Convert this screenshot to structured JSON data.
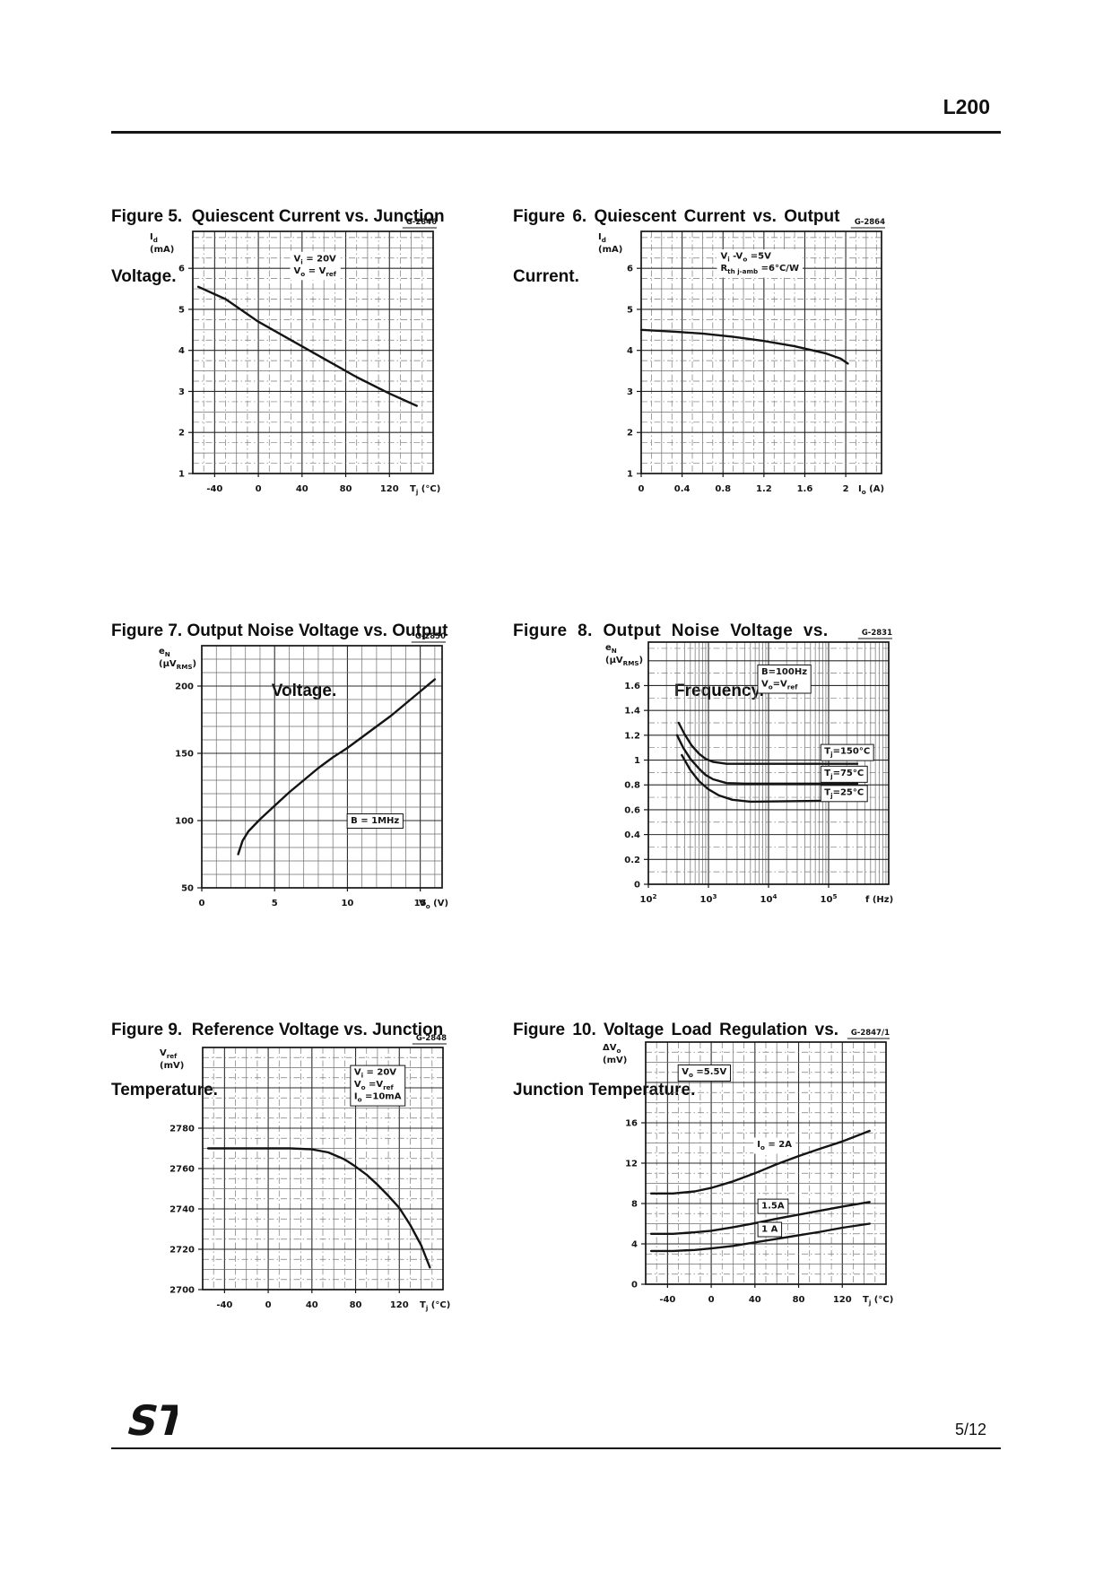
{
  "header": {
    "part_number": "L200"
  },
  "footer": {
    "page_number": "5/12",
    "logo": "ST"
  },
  "chart_data": [
    {
      "type": "line",
      "title_lines": [
        "Figure 5.  Quiescent Current vs. Junction",
        "Voltage."
      ],
      "code": "G-2846",
      "ylabel_lines": [
        "I_{d}",
        "(mA)"
      ],
      "xlabel": "T_{j} (°C)",
      "xscale": "linear",
      "xlim": [
        -60,
        160
      ],
      "ylim": [
        1,
        6.9
      ],
      "x_tick_values": [
        -40,
        0,
        40,
        80,
        120
      ],
      "x_tick_labels": [
        "-40",
        "0",
        "40",
        "80",
        "120"
      ],
      "y_tick_values": [
        1,
        2,
        3,
        4,
        5,
        6
      ],
      "y_tick_labels": [
        "1",
        "2",
        "3",
        "4",
        "5",
        "6"
      ],
      "grid": {
        "x_minor": 20,
        "x_major": 40,
        "x_dash": true,
        "y_minor": 0.5,
        "y_major": 1,
        "y_dash": true
      },
      "series": [
        {
          "name": "Id vs Tj",
          "points": [
            [
              -55,
              5.55
            ],
            [
              -30,
              5.25
            ],
            [
              0,
              4.7
            ],
            [
              30,
              4.25
            ],
            [
              60,
              3.8
            ],
            [
              90,
              3.35
            ],
            [
              120,
              2.95
            ],
            [
              145,
              2.65
            ]
          ]
        }
      ],
      "annotations": [
        {
          "lines": [
            "V_{i}  = 20V",
            "V_{o} = V_{ref}"
          ],
          "fx": 0.42,
          "fy": 0.09,
          "boxed": false
        }
      ]
    },
    {
      "type": "line",
      "title_lines": [
        "Figure 6. Quiescent Current vs. Output",
        "Current."
      ],
      "code": "G-2864",
      "ylabel_lines": [
        "I_{d}",
        "(mA)"
      ],
      "xlabel": "I_{o} (A)",
      "xscale": "linear",
      "xlim": [
        0,
        2.35
      ],
      "ylim": [
        1,
        6.9
      ],
      "x_tick_values": [
        0,
        0.4,
        0.8,
        1.2,
        1.6,
        2
      ],
      "x_tick_labels": [
        "0",
        "0.4",
        "0.8",
        "1.2",
        "1.6",
        "2"
      ],
      "y_tick_values": [
        1,
        2,
        3,
        4,
        5,
        6
      ],
      "y_tick_labels": [
        "1",
        "2",
        "3",
        "4",
        "5",
        "6"
      ],
      "grid": {
        "x_minor": 0.2,
        "x_major": 0.4,
        "x_dash": true,
        "y_minor": 0.5,
        "y_major": 1,
        "y_dash": true
      },
      "series": [
        {
          "name": "Id vs Io",
          "points": [
            [
              0,
              4.5
            ],
            [
              0.3,
              4.46
            ],
            [
              0.6,
              4.41
            ],
            [
              0.9,
              4.33
            ],
            [
              1.2,
              4.23
            ],
            [
              1.5,
              4.1
            ],
            [
              1.8,
              3.93
            ],
            [
              1.95,
              3.8
            ],
            [
              2.02,
              3.68
            ]
          ]
        }
      ],
      "annotations": [
        {
          "lines": [
            "V_{i} -V_{o} =5V",
            "R_{th j-amb} =6°C/W"
          ],
          "fx": 0.33,
          "fy": 0.08,
          "boxed": false
        }
      ]
    },
    {
      "type": "line",
      "title_lines": [
        "Figure 7. Output Noise Voltage vs. Output",
        "Voltage."
      ],
      "code": "G-2850",
      "ylabel_lines": [
        "e_{N}",
        "(µV_{RMS})"
      ],
      "xlabel": "V_{o} (V)",
      "xscale": "linear",
      "xlim": [
        0,
        16.5
      ],
      "ylim": [
        50,
        230
      ],
      "x_tick_values": [
        0,
        5,
        10,
        15
      ],
      "x_tick_labels": [
        "0",
        "5",
        "10",
        "15"
      ],
      "y_tick_values": [
        50,
        100,
        150,
        200
      ],
      "y_tick_labels": [
        "50",
        "100",
        "150",
        "200"
      ],
      "grid": {
        "x_minor": 1,
        "x_major": 5,
        "x_dash": false,
        "y_minor": 10,
        "y_major": 50,
        "y_dash": false
      },
      "series": [
        {
          "name": "eN vs Vo",
          "points": [
            [
              2.5,
              75
            ],
            [
              2.8,
              85
            ],
            [
              3.2,
              92
            ],
            [
              4,
              101
            ],
            [
              5,
              111
            ],
            [
              6,
              121
            ],
            [
              7,
              130
            ],
            [
              8,
              139
            ],
            [
              9,
              147
            ],
            [
              10,
              154
            ],
            [
              11,
              162
            ],
            [
              12,
              170
            ],
            [
              13,
              178
            ],
            [
              14,
              187
            ],
            [
              15,
              196
            ],
            [
              16,
              205
            ]
          ]
        }
      ],
      "annotations": [
        {
          "lines": [
            "B = 1MHz"
          ],
          "fx": 0.62,
          "fy": 0.7,
          "boxed": true
        }
      ]
    },
    {
      "type": "line",
      "title_lines": [
        "Figure 8. Output Noise Voltage vs.",
        "Frequency."
      ],
      "code": "G-2831",
      "ylabel_lines": [
        "e_{N}",
        "(µV_{RMS})"
      ],
      "xlabel": "f (Hz)",
      "xscale": "log",
      "xlim": [
        100,
        1000000
      ],
      "ylim": [
        0,
        1.95
      ],
      "x_tick_values": [
        100,
        1000,
        10000,
        100000
      ],
      "x_tick_labels": [
        "10^{2}",
        "10^{3}",
        "10^{4}",
        "10^{5}"
      ],
      "y_tick_values": [
        0,
        0.2,
        0.4,
        0.6,
        0.8,
        1,
        1.2,
        1.4,
        1.6
      ],
      "y_tick_labels": [
        "0",
        "0.2",
        "0.4",
        "0.6",
        "0.8",
        "1",
        "1.2",
        "1.4",
        "1.6"
      ],
      "grid": {
        "y_minor": 0.2,
        "y_major": 0.2,
        "y_dash": true
      },
      "series": [
        {
          "name": "Tj=150°C",
          "points": [
            [
              320,
              1.3
            ],
            [
              400,
              1.21
            ],
            [
              520,
              1.12
            ],
            [
              700,
              1.05
            ],
            [
              900,
              1.01
            ],
            [
              1200,
              0.985
            ],
            [
              2000,
              0.97
            ],
            [
              4000,
              0.97
            ],
            [
              300000,
              0.97
            ]
          ]
        },
        {
          "name": "Tj=75°C",
          "points": [
            [
              300,
              1.2
            ],
            [
              380,
              1.1
            ],
            [
              500,
              1.01
            ],
            [
              700,
              0.93
            ],
            [
              900,
              0.88
            ],
            [
              1200,
              0.845
            ],
            [
              2000,
              0.815
            ],
            [
              4000,
              0.81
            ],
            [
              300000,
              0.81
            ]
          ]
        },
        {
          "name": "Tj=25°C",
          "points": [
            [
              360,
              1.04
            ],
            [
              500,
              0.92
            ],
            [
              700,
              0.83
            ],
            [
              1000,
              0.765
            ],
            [
              1500,
              0.715
            ],
            [
              2500,
              0.68
            ],
            [
              5000,
              0.665
            ],
            [
              300000,
              0.675
            ]
          ]
        }
      ],
      "annotations": [
        {
          "lines": [
            "B=100Hz",
            "V_{o}=V_{ref}"
          ],
          "fx": 0.47,
          "fy": 0.1,
          "boxed": true
        },
        {
          "lines": [
            "T_{j}=150°C"
          ],
          "dx": 85000,
          "dy": 1.05,
          "boxed": true
        },
        {
          "lines": [
            "T_{j}=75°C"
          ],
          "dx": 85000,
          "dy": 0.875,
          "boxed": true
        },
        {
          "lines": [
            "T_{j}=25°C"
          ],
          "dx": 85000,
          "dy": 0.72,
          "boxed": true
        }
      ]
    },
    {
      "type": "line",
      "title_lines": [
        "Figure 9.  Reference Voltage vs. Junction",
        "Temperature."
      ],
      "code": "G-2848",
      "ylabel_lines": [
        "V_{ref}",
        "(mV)"
      ],
      "xlabel": "T_{j} (°C)",
      "xscale": "linear",
      "xlim": [
        -60,
        160
      ],
      "ylim": [
        2700,
        2820
      ],
      "x_tick_values": [
        -40,
        0,
        40,
        80,
        120
      ],
      "x_tick_labels": [
        "-40",
        "0",
        "40",
        "80",
        "120"
      ],
      "y_tick_values": [
        2700,
        2720,
        2740,
        2760,
        2780
      ],
      "y_tick_labels": [
        "2700",
        "2720",
        "2740",
        "2760",
        "2780"
      ],
      "grid": {
        "x_minor": 20,
        "x_major": 40,
        "x_dash": true,
        "y_minor": 10,
        "y_major": 20,
        "y_dash": true
      },
      "series": [
        {
          "name": "Vref vs Tj",
          "points": [
            [
              -55,
              2770
            ],
            [
              -10,
              2770
            ],
            [
              20,
              2770
            ],
            [
              40,
              2769.5
            ],
            [
              55,
              2768
            ],
            [
              70,
              2764.5
            ],
            [
              80,
              2761
            ],
            [
              90,
              2757
            ],
            [
              100,
              2752
            ],
            [
              110,
              2746.5
            ],
            [
              120,
              2740.5
            ],
            [
              130,
              2732
            ],
            [
              140,
              2722
            ],
            [
              148,
              2711
            ]
          ]
        }
      ],
      "annotations": [
        {
          "lines": [
            "V_{i}  = 20V",
            "V_{o} =V_{ref}",
            "I_{o}  =10mA"
          ],
          "fx": 0.63,
          "fy": 0.08,
          "boxed": true
        }
      ]
    },
    {
      "type": "line",
      "title_lines": [
        "Figure 10. Voltage Load Regulation vs.",
        "Junction Temperature."
      ],
      "code": "G-2847/1",
      "ylabel_lines": [
        "ΔV_{o}",
        "(mV)"
      ],
      "xlabel": "T_{j} (°C)",
      "xscale": "linear",
      "xlim": [
        -60,
        160
      ],
      "ylim": [
        0,
        24
      ],
      "x_tick_values": [
        -40,
        0,
        40,
        80,
        120
      ],
      "x_tick_labels": [
        "-40",
        "0",
        "40",
        "80",
        "120"
      ],
      "y_tick_values": [
        0,
        4,
        8,
        12,
        16
      ],
      "y_tick_labels": [
        "0",
        "4",
        "8",
        "12",
        "16"
      ],
      "grid": {
        "x_minor": 20,
        "x_major": 40,
        "x_dash": true,
        "y_minor": 2,
        "y_major": 4,
        "y_dash": true
      },
      "series": [
        {
          "name": "Io = 2A",
          "points": [
            [
              -55,
              9.0
            ],
            [
              -35,
              9.0
            ],
            [
              -15,
              9.2
            ],
            [
              0,
              9.55
            ],
            [
              20,
              10.2
            ],
            [
              40,
              11.0
            ],
            [
              60,
              11.9
            ],
            [
              80,
              12.7
            ],
            [
              100,
              13.45
            ],
            [
              120,
              14.15
            ],
            [
              145,
              15.2
            ]
          ]
        },
        {
          "name": "1.5A",
          "points": [
            [
              -55,
              5.0
            ],
            [
              -35,
              5.0
            ],
            [
              -15,
              5.15
            ],
            [
              0,
              5.3
            ],
            [
              20,
              5.65
            ],
            [
              40,
              6.05
            ],
            [
              60,
              6.5
            ],
            [
              80,
              6.9
            ],
            [
              100,
              7.3
            ],
            [
              120,
              7.7
            ],
            [
              145,
              8.15
            ]
          ]
        },
        {
          "name": "1A",
          "points": [
            [
              -55,
              3.3
            ],
            [
              -35,
              3.3
            ],
            [
              -15,
              3.4
            ],
            [
              0,
              3.55
            ],
            [
              20,
              3.8
            ],
            [
              40,
              4.15
            ],
            [
              60,
              4.5
            ],
            [
              80,
              4.85
            ],
            [
              100,
              5.2
            ],
            [
              120,
              5.6
            ],
            [
              145,
              6.0
            ]
          ]
        }
      ],
      "annotations": [
        {
          "lines": [
            "V_{o}  =5.5V"
          ],
          "fx": 0.15,
          "fy": 0.1,
          "boxed": true
        },
        {
          "lines": [
            "I_{o} = 2A"
          ],
          "dx": 42,
          "dy": 13.6,
          "boxed": false
        },
        {
          "lines": [
            "1.5A"
          ],
          "dx": 46,
          "dy": 7.5,
          "boxed": true
        },
        {
          "lines": [
            "1 A"
          ],
          "dx": 46,
          "dy": 5.2,
          "boxed": true
        }
      ]
    }
  ]
}
